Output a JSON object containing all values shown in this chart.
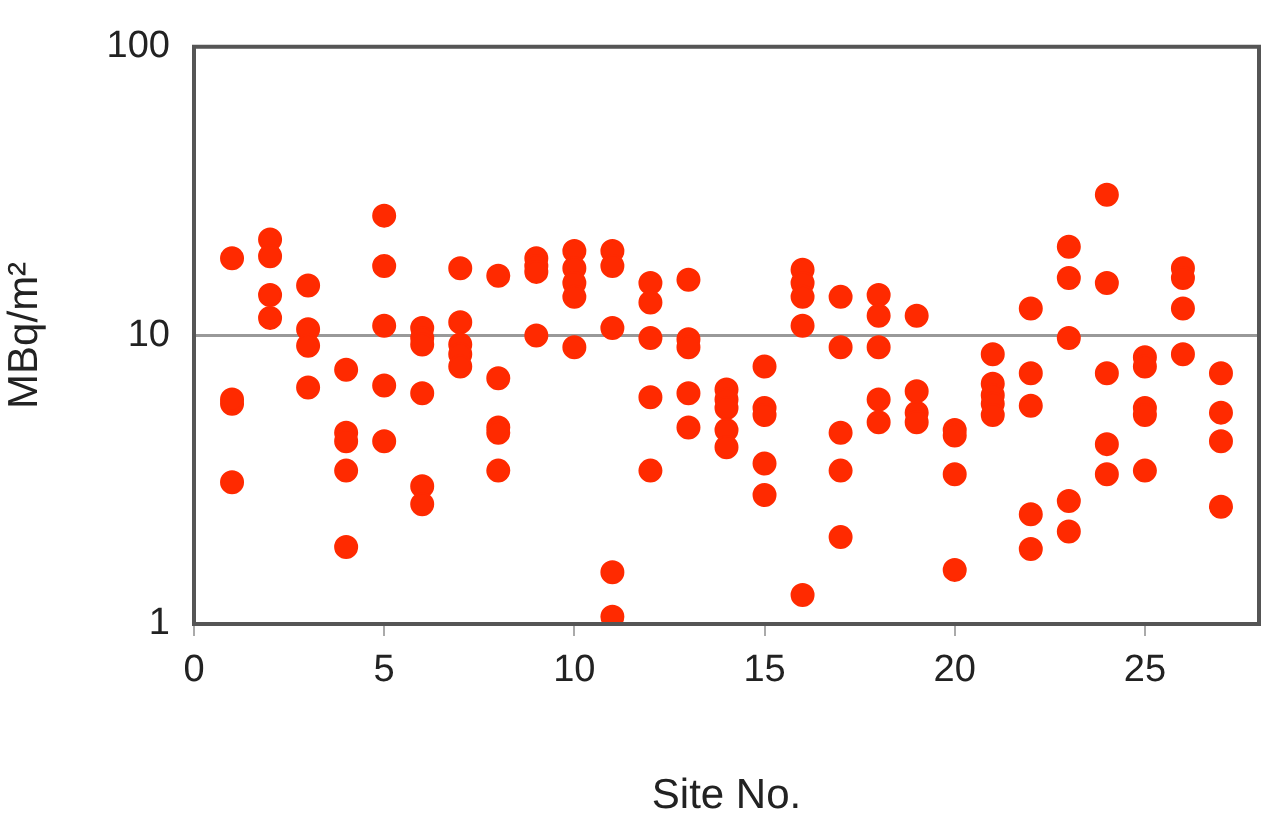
{
  "chart_data": {
    "type": "scatter",
    "xlabel": "Site No.",
    "ylabel": "MBq/m²",
    "log": "y",
    "grid": "y",
    "legend": false,
    "marker": "circle",
    "color": "#ff2a00",
    "x": [
      1,
      1,
      1,
      1,
      2,
      2,
      2,
      2,
      3,
      3,
      3,
      3,
      4,
      4,
      4,
      4,
      4,
      5,
      5,
      5,
      5,
      5,
      6,
      6,
      6,
      6,
      6,
      6,
      7,
      7,
      7,
      7,
      7,
      8,
      8,
      8,
      8,
      8,
      9,
      9,
      9,
      9,
      10,
      10,
      10,
      10,
      10,
      11,
      11,
      11,
      11,
      11,
      12,
      12,
      12,
      12,
      12,
      13,
      13,
      13,
      13,
      13,
      14,
      14,
      14,
      14,
      14,
      15,
      15,
      15,
      15,
      15,
      16,
      16,
      16,
      16,
      16,
      17,
      17,
      17,
      17,
      17,
      18,
      18,
      18,
      18,
      18,
      19,
      19,
      19,
      19,
      20,
      20,
      20,
      20,
      21,
      21,
      21,
      21,
      21,
      22,
      22,
      22,
      22,
      22,
      23,
      23,
      23,
      23,
      23,
      24,
      24,
      24,
      24,
      24,
      25,
      25,
      25,
      25,
      25,
      26,
      26,
      26,
      26,
      27,
      27,
      27,
      27
    ],
    "values": [
      18.5,
      5.8,
      6,
      3.1,
      21.5,
      18.8,
      13.8,
      11.5,
      14.9,
      10.5,
      9.2,
      6.6,
      7.6,
      4.6,
      4.3,
      3.4,
      1.85,
      26,
      17.4,
      10.8,
      6.7,
      4.3,
      10.6,
      9.8,
      9.3,
      6.3,
      3,
      2.6,
      17.1,
      11.1,
      9.3,
      8.6,
      7.8,
      16.1,
      7.1,
      4.8,
      4.6,
      3.4,
      18.5,
      17.4,
      16.6,
      10,
      19.6,
      17.1,
      15.2,
      13.6,
      9.1,
      19.6,
      17.4,
      10.6,
      1.51,
      1.06,
      15.2,
      13,
      9.8,
      6.1,
      3.4,
      15.6,
      9.7,
      9.1,
      6.3,
      4.8,
      6.5,
      6,
      5.6,
      4.7,
      4.1,
      7.8,
      5.6,
      5.3,
      3.6,
      2.8,
      16.9,
      15.2,
      13.6,
      10.8,
      1.26,
      13.6,
      9.1,
      4.6,
      3.4,
      2,
      13.8,
      11.7,
      9.1,
      6,
      5,
      11.7,
      6.4,
      5.4,
      5,
      4.7,
      4.5,
      3.3,
      1.54,
      8.6,
      6.8,
      6.2,
      5.8,
      5.3,
      12.4,
      7.4,
      5.7,
      2.4,
      1.82,
      20.3,
      15.8,
      9.8,
      2.67,
      2.09,
      30.7,
      15.2,
      7.4,
      4.2,
      3.3,
      8.4,
      7.8,
      5.6,
      5.3,
      3.4,
      17.1,
      15.8,
      12.4,
      8.6,
      7.4,
      5.4,
      4.3,
      2.55
    ],
    "xlim": [
      0,
      28
    ],
    "xticks": [
      0,
      5,
      10,
      15,
      20,
      25
    ],
    "ylim": [
      1,
      100
    ],
    "yticks": [
      1,
      10,
      100
    ]
  }
}
